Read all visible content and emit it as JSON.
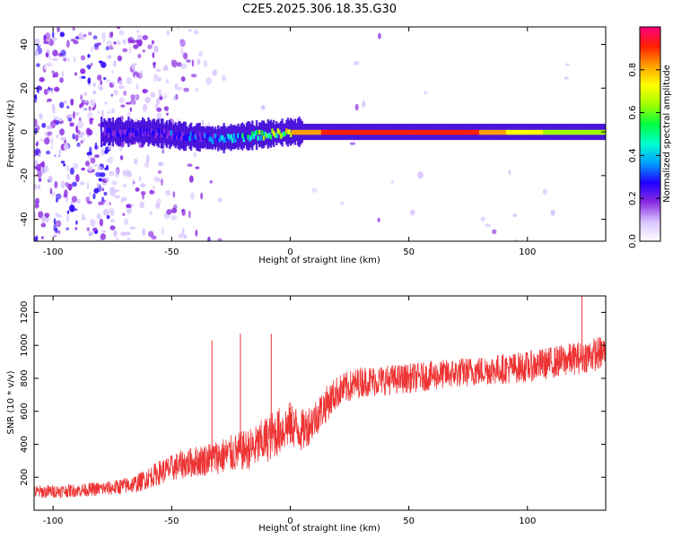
{
  "title": "C2E5.2025.306.18.35.G30",
  "chart_data": [
    {
      "type": "heatmap",
      "title": "C2E5.2025.306.18.35.G30",
      "xlabel": "Height of straight line (km)",
      "ylabel": "Frequency (Hz)",
      "xlim": [
        -108,
        133
      ],
      "ylim": [
        -50,
        48
      ],
      "xticks": [
        -100,
        -50,
        0,
        50,
        100
      ],
      "xtick_labels": [
        "-100",
        "-50",
        "0",
        "50",
        "100"
      ],
      "yticks": [
        -40,
        -20,
        0,
        20,
        40
      ],
      "ytick_labels": [
        "-40",
        "-20",
        "0",
        "20",
        "40"
      ],
      "grid": false,
      "colorbar": {
        "label": "Normalized spectral amplitude",
        "range": [
          0.0,
          1.0
        ],
        "ticks": [
          0.0,
          0.2,
          0.4,
          0.6,
          0.8
        ],
        "tick_labels": [
          "0.0",
          "0.2",
          "0.4",
          "0.6",
          "0.8"
        ],
        "colors": [
          "#ffffff",
          "#d8c4ff",
          "#8a2be2",
          "#2200ff",
          "#00a0ff",
          "#00ffd0",
          "#00ff40",
          "#a0ff00",
          "#ffff00",
          "#ffa000",
          "#ff2000",
          "#ff0080"
        ]
      },
      "ridge": {
        "description": "Narrow high-amplitude band near 0 Hz",
        "x": [
          -75,
          -60,
          -45,
          -30,
          -20,
          -10,
          0,
          10,
          20,
          30,
          50,
          75,
          100,
          133
        ],
        "center_hz": [
          0,
          0,
          -2,
          -3,
          -2,
          -1,
          0,
          0,
          0,
          0,
          0,
          0,
          0,
          0
        ],
        "amplitude": [
          0.2,
          0.25,
          0.3,
          0.35,
          0.45,
          0.6,
          0.85,
          0.85,
          0.9,
          0.9,
          0.9,
          0.9,
          0.7,
          0.6
        ]
      }
    },
    {
      "type": "line",
      "xlabel": "Height of straight line (km)",
      "ylabel": "SNR (10 * v/v)",
      "xlim": [
        -108,
        133
      ],
      "ylim": [
        0,
        1300
      ],
      "xticks": [
        -100,
        -50,
        0,
        50,
        100
      ],
      "xtick_labels": [
        "-100",
        "-50",
        "0",
        "50",
        "100"
      ],
      "yticks": [
        200,
        400,
        600,
        800,
        1000,
        1200
      ],
      "ytick_labels": [
        "200",
        "400",
        "600",
        "800",
        "1000",
        "1200"
      ],
      "grid": false,
      "series": [
        {
          "name": "SNR",
          "color": "#ee3333",
          "x": [
            -108,
            -90,
            -75,
            -65,
            -55,
            -45,
            -35,
            -25,
            -15,
            -8,
            0,
            5,
            10,
            15,
            20,
            30,
            50,
            75,
            100,
            120,
            133
          ],
          "values": [
            110,
            120,
            135,
            160,
            230,
            280,
            310,
            340,
            380,
            450,
            520,
            480,
            550,
            640,
            720,
            780,
            800,
            840,
            870,
            920,
            960
          ],
          "spread": [
            80,
            80,
            90,
            110,
            150,
            180,
            200,
            230,
            260,
            300,
            280,
            260,
            240,
            220,
            200,
            190,
            180,
            180,
            190,
            200,
            210
          ],
          "spikes": [
            {
              "x": -33,
              "value": 1030
            },
            {
              "x": -21,
              "value": 1070
            },
            {
              "x": -8,
              "value": 1070
            },
            {
              "x": 123,
              "value": 1300
            }
          ]
        }
      ]
    }
  ]
}
